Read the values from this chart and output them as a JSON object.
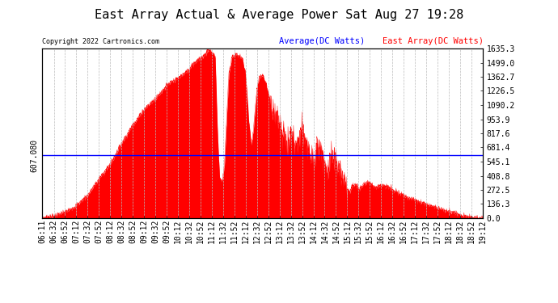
{
  "title": "East Array Actual & Average Power Sat Aug 27 19:28",
  "copyright": "Copyright 2022 Cartronics.com",
  "legend_avg": "Average(DC Watts)",
  "legend_east": "East Array(DC Watts)",
  "avg_value": 607.08,
  "y_left_label": "607.080",
  "y_right_ticks": [
    0.0,
    136.3,
    272.5,
    408.8,
    545.1,
    681.4,
    817.6,
    953.9,
    1090.2,
    1226.5,
    1362.7,
    1499.0,
    1635.3
  ],
  "ymax": 1635.3,
  "ymin": 0.0,
  "background_color": "#ffffff",
  "fill_color": "#ff0000",
  "line_color": "#ff0000",
  "avg_line_color": "#0000ff",
  "title_fontsize": 11,
  "copyright_fontsize": 7,
  "x_labels": [
    "06:11",
    "06:32",
    "06:52",
    "07:12",
    "07:32",
    "07:52",
    "08:12",
    "08:32",
    "08:52",
    "09:12",
    "09:32",
    "09:52",
    "10:12",
    "10:32",
    "10:52",
    "11:12",
    "11:32",
    "11:52",
    "12:12",
    "12:32",
    "12:52",
    "13:12",
    "13:32",
    "13:52",
    "14:12",
    "14:32",
    "14:52",
    "15:12",
    "15:32",
    "15:52",
    "16:12",
    "16:32",
    "16:52",
    "17:12",
    "17:32",
    "17:52",
    "18:12",
    "18:32",
    "18:52",
    "19:12"
  ],
  "grid_color": "#bbbbbb",
  "grid_style": "--",
  "tick_font_size": 7
}
